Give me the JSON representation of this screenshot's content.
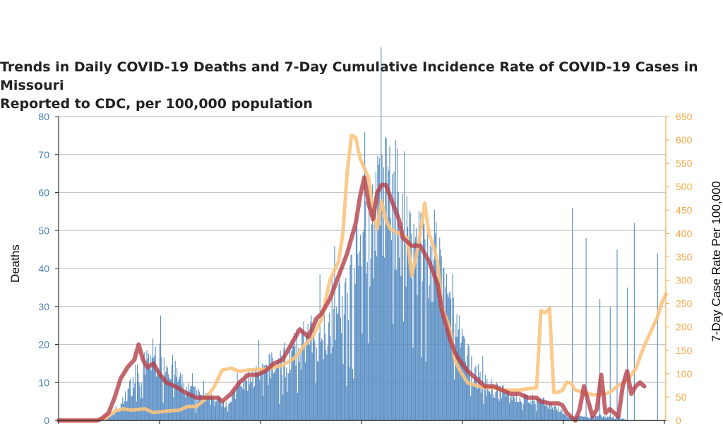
{
  "chart_data": {
    "type": "bar",
    "title": "Trends in Daily COVID-19 Deaths and 7-Day Cumulative Incidence Rate of COVID-19 Cases in Missouri\nReported to CDC, per 100,000 population",
    "ylabel": "Deaths",
    "y2label": "7-Day Case Rate Per 100,000",
    "ylim": [
      0,
      80
    ],
    "y2lim": [
      0,
      650
    ],
    "yticks": [
      0,
      10,
      20,
      30,
      40,
      50,
      60,
      70,
      80
    ],
    "y2ticks": [
      0,
      50,
      100,
      150,
      200,
      250,
      300,
      350,
      400,
      450,
      500,
      550,
      600,
      650
    ],
    "grid": true,
    "colors": {
      "bars": "#5b8fc4",
      "avg_line": "#b5404a",
      "case_rate_line": "#fbc47f",
      "left_axis": "#4a7fb5",
      "right_axis": "#f5a94a"
    },
    "series_anchors": {
      "daily_deaths": [
        [
          0,
          0
        ],
        [
          45,
          0
        ],
        [
          55,
          0.5
        ],
        [
          70,
          3
        ],
        [
          80,
          8
        ],
        [
          90,
          12
        ],
        [
          100,
          15
        ],
        [
          110,
          18
        ],
        [
          115,
          17
        ],
        [
          125,
          16
        ],
        [
          135,
          13
        ],
        [
          145,
          9
        ],
        [
          160,
          7
        ],
        [
          175,
          6
        ],
        [
          190,
          5
        ],
        [
          200,
          6
        ],
        [
          210,
          9
        ],
        [
          220,
          11
        ],
        [
          235,
          13
        ],
        [
          250,
          15
        ],
        [
          270,
          18
        ],
        [
          290,
          22
        ],
        [
          305,
          24
        ],
        [
          320,
          28
        ],
        [
          330,
          32
        ],
        [
          340,
          38
        ],
        [
          350,
          45
        ],
        [
          360,
          52
        ],
        [
          370,
          58
        ],
        [
          380,
          62
        ],
        [
          390,
          60
        ],
        [
          400,
          55
        ],
        [
          410,
          50
        ],
        [
          420,
          47
        ],
        [
          430,
          44
        ],
        [
          440,
          40
        ],
        [
          450,
          34
        ],
        [
          460,
          26
        ],
        [
          470,
          19
        ],
        [
          480,
          14
        ],
        [
          490,
          11
        ],
        [
          500,
          9
        ],
        [
          520,
          7
        ],
        [
          540,
          6
        ],
        [
          560,
          5
        ],
        [
          570,
          4.5
        ],
        [
          580,
          3
        ],
        [
          590,
          1
        ],
        [
          600,
          1
        ],
        [
          630,
          1
        ],
        [
          650,
          1
        ],
        [
          660,
          0
        ]
      ],
      "daily_deaths_7day_avg": [
        [
          0,
          0
        ],
        [
          45,
          0
        ],
        [
          50,
          0.5
        ],
        [
          58,
          2
        ],
        [
          65,
          6
        ],
        [
          72,
          11
        ],
        [
          80,
          14
        ],
        [
          88,
          16
        ],
        [
          93,
          20
        ],
        [
          98,
          16
        ],
        [
          103,
          14
        ],
        [
          110,
          15
        ],
        [
          118,
          12
        ],
        [
          125,
          10
        ],
        [
          135,
          9
        ],
        [
          150,
          7
        ],
        [
          160,
          6
        ],
        [
          175,
          6
        ],
        [
          185,
          6
        ],
        [
          190,
          5
        ],
        [
          200,
          7
        ],
        [
          210,
          10
        ],
        [
          220,
          12
        ],
        [
          230,
          12
        ],
        [
          240,
          13
        ],
        [
          250,
          15
        ],
        [
          260,
          16
        ],
        [
          270,
          20
        ],
        [
          280,
          24
        ],
        [
          290,
          22
        ],
        [
          300,
          27
        ],
        [
          305,
          28
        ],
        [
          315,
          32
        ],
        [
          325,
          38
        ],
        [
          335,
          44
        ],
        [
          345,
          52
        ],
        [
          350,
          59
        ],
        [
          355,
          64
        ],
        [
          360,
          57
        ],
        [
          365,
          53
        ],
        [
          370,
          60
        ],
        [
          375,
          62
        ],
        [
          380,
          62
        ],
        [
          385,
          59
        ],
        [
          390,
          56
        ],
        [
          395,
          53
        ],
        [
          400,
          48
        ],
        [
          410,
          46
        ],
        [
          420,
          46
        ],
        [
          430,
          42
        ],
        [
          440,
          36
        ],
        [
          445,
          29
        ],
        [
          450,
          25
        ],
        [
          455,
          21
        ],
        [
          460,
          18
        ],
        [
          465,
          16
        ],
        [
          475,
          13
        ],
        [
          485,
          11
        ],
        [
          490,
          10
        ],
        [
          495,
          9
        ],
        [
          505,
          9
        ],
        [
          515,
          8
        ],
        [
          525,
          7
        ],
        [
          535,
          7
        ],
        [
          545,
          6
        ],
        [
          555,
          6
        ],
        [
          560,
          5
        ],
        [
          570,
          4.5
        ],
        [
          580,
          4.5
        ],
        [
          585,
          4
        ],
        [
          590,
          2
        ],
        [
          595,
          1
        ],
        [
          600,
          0
        ],
        [
          605,
          3
        ],
        [
          610,
          9
        ],
        [
          615,
          5
        ],
        [
          620,
          1
        ],
        [
          625,
          3
        ],
        [
          630,
          12
        ],
        [
          635,
          2
        ],
        [
          640,
          3
        ],
        [
          650,
          1
        ],
        [
          655,
          9
        ],
        [
          660,
          13
        ],
        [
          665,
          7
        ],
        [
          670,
          9
        ],
        [
          675,
          10
        ],
        [
          680,
          9
        ]
      ],
      "case_rate_7day_per_100k": [
        [
          0,
          0
        ],
        [
          45,
          0
        ],
        [
          55,
          5
        ],
        [
          65,
          20
        ],
        [
          75,
          25
        ],
        [
          85,
          22
        ],
        [
          100,
          25
        ],
        [
          110,
          17
        ],
        [
          125,
          20
        ],
        [
          140,
          22
        ],
        [
          150,
          30
        ],
        [
          160,
          30
        ],
        [
          170,
          45
        ],
        [
          180,
          70
        ],
        [
          190,
          108
        ],
        [
          200,
          112
        ],
        [
          210,
          105
        ],
        [
          220,
          108
        ],
        [
          240,
          110
        ],
        [
          260,
          118
        ],
        [
          275,
          135
        ],
        [
          285,
          160
        ],
        [
          295,
          180
        ],
        [
          305,
          215
        ],
        [
          315,
          300
        ],
        [
          325,
          340
        ],
        [
          330,
          400
        ],
        [
          335,
          530
        ],
        [
          340,
          610
        ],
        [
          345,
          605
        ],
        [
          350,
          560
        ],
        [
          355,
          540
        ],
        [
          360,
          520
        ],
        [
          365,
          440
        ],
        [
          370,
          410
        ],
        [
          375,
          470
        ],
        [
          380,
          430
        ],
        [
          385,
          410
        ],
        [
          390,
          405
        ],
        [
          395,
          400
        ],
        [
          400,
          395
        ],
        [
          405,
          390
        ],
        [
          410,
          310
        ],
        [
          415,
          350
        ],
        [
          420,
          400
        ],
        [
          425,
          465
        ],
        [
          430,
          400
        ],
        [
          435,
          375
        ],
        [
          440,
          340
        ],
        [
          445,
          240
        ],
        [
          450,
          220
        ],
        [
          455,
          190
        ],
        [
          460,
          130
        ],
        [
          465,
          110
        ],
        [
          470,
          95
        ],
        [
          475,
          80
        ],
        [
          485,
          75
        ],
        [
          495,
          70
        ],
        [
          505,
          70
        ],
        [
          515,
          65
        ],
        [
          525,
          65
        ],
        [
          535,
          65
        ],
        [
          545,
          68
        ],
        [
          555,
          70
        ],
        [
          560,
          235
        ],
        [
          565,
          230
        ],
        [
          570,
          240
        ],
        [
          575,
          60
        ],
        [
          580,
          60
        ],
        [
          585,
          65
        ],
        [
          590,
          82
        ],
        [
          595,
          80
        ],
        [
          600,
          65
        ],
        [
          610,
          60
        ],
        [
          620,
          55
        ],
        [
          630,
          55
        ],
        [
          640,
          60
        ],
        [
          650,
          75
        ],
        [
          660,
          85
        ],
        [
          670,
          110
        ],
        [
          680,
          160
        ],
        [
          690,
          200
        ],
        [
          695,
          220
        ],
        [
          700,
          250
        ],
        [
          705,
          270
        ]
      ]
    }
  }
}
